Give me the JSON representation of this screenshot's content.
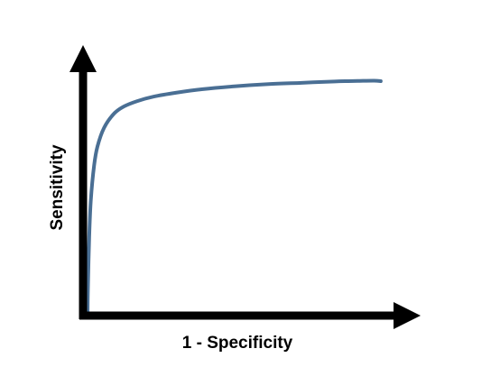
{
  "chart_data": {
    "type": "line",
    "title": "",
    "xlabel": "1 - Specificity",
    "ylabel": "Sensitivity",
    "xlim": [
      0,
      1
    ],
    "ylim": [
      0,
      1
    ],
    "grid": false,
    "ticks": false,
    "series": [
      {
        "color": "#4a6f94",
        "x": [
          0,
          0.001,
          0.005,
          0.01,
          0.02,
          0.03,
          0.05,
          0.08,
          0.11,
          0.15,
          0.2,
          0.27,
          0.35,
          0.45,
          0.55,
          0.65,
          0.75,
          0.82,
          0.87,
          0.89
        ],
        "y": [
          0,
          0.1,
          0.3,
          0.44,
          0.57,
          0.64,
          0.71,
          0.763,
          0.79,
          0.81,
          0.827,
          0.842,
          0.855,
          0.866,
          0.874,
          0.879,
          0.884,
          0.886,
          0.887,
          0.885
        ]
      }
    ]
  }
}
